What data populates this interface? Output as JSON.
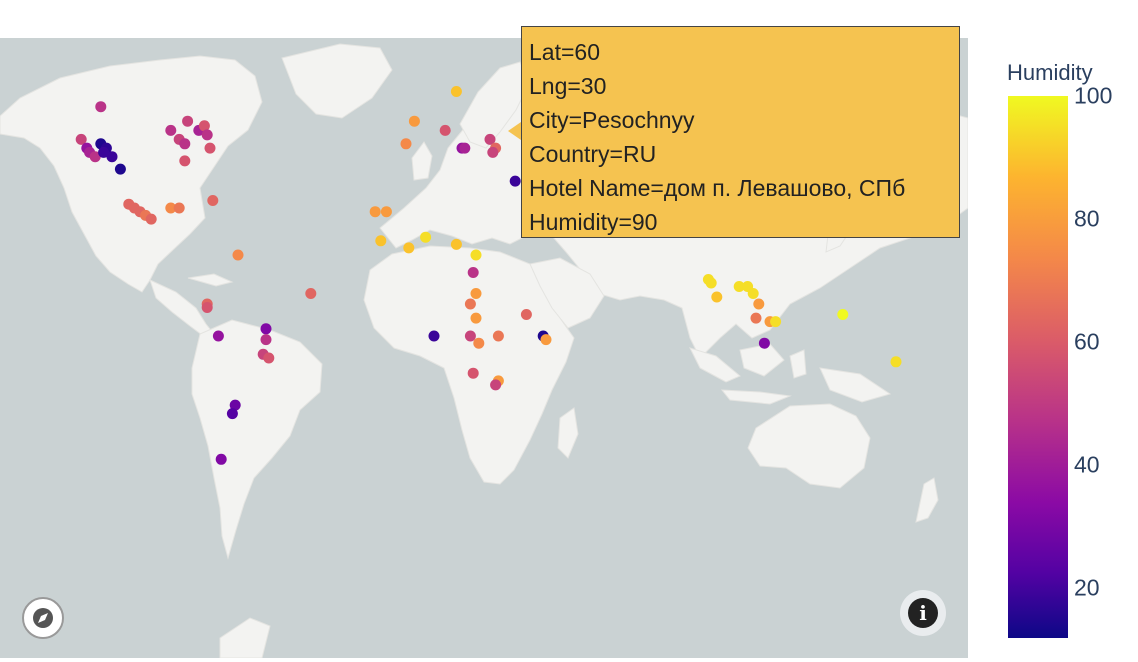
{
  "colorbar": {
    "title": "Humidity",
    "min": 12,
    "max": 100,
    "ticks": [
      {
        "label": "100",
        "value": 100
      },
      {
        "label": "80",
        "value": 80
      },
      {
        "label": "60",
        "value": 60
      },
      {
        "label": "40",
        "value": 40
      },
      {
        "label": "20",
        "value": 20
      }
    ],
    "colorscale": [
      "#0d0887",
      "#5302a3",
      "#8b0aa5",
      "#b83289",
      "#db5c68",
      "#f48849",
      "#fdb42f",
      "#f0f921"
    ]
  },
  "tooltip": {
    "lines": [
      "Lat=60",
      "Lng=30",
      "City=Pesochnyy",
      "Country=RU",
      "Hotel Name=дом п. Левашово, СПб",
      "Humidity=90"
    ]
  },
  "icons": {
    "compass": "compass-icon",
    "info": "info-icon"
  },
  "map": {
    "land_color": "#f3f3f1",
    "water_color": "#cad2d3",
    "points": [
      {
        "lat": 60,
        "lng": 30,
        "humidity": 90
      },
      {
        "lat": 45,
        "lng": -115,
        "humidity": 50
      },
      {
        "lat": 38,
        "lng": -122,
        "humidity": 55
      },
      {
        "lat": 36,
        "lng": -120,
        "humidity": 40
      },
      {
        "lat": 35,
        "lng": -119,
        "humidity": 45
      },
      {
        "lat": 34,
        "lng": -117,
        "humidity": 50
      },
      {
        "lat": 37,
        "lng": -115,
        "humidity": 15
      },
      {
        "lat": 36,
        "lng": -113,
        "humidity": 18
      },
      {
        "lat": 35,
        "lng": -114,
        "humidity": 20
      },
      {
        "lat": 34,
        "lng": -111,
        "humidity": 20
      },
      {
        "lat": 31,
        "lng": -108,
        "humidity": 15
      },
      {
        "lat": 40,
        "lng": -90,
        "humidity": 50
      },
      {
        "lat": 38,
        "lng": -87,
        "humidity": 55
      },
      {
        "lat": 37,
        "lng": -85,
        "humidity": 50
      },
      {
        "lat": 42,
        "lng": -84,
        "humidity": 55
      },
      {
        "lat": 40,
        "lng": -80,
        "humidity": 45
      },
      {
        "lat": 41,
        "lng": -78,
        "humidity": 60
      },
      {
        "lat": 39,
        "lng": -77,
        "humidity": 50
      },
      {
        "lat": 36,
        "lng": -76,
        "humidity": 60
      },
      {
        "lat": 33,
        "lng": -85,
        "humidity": 60
      },
      {
        "lat": 22,
        "lng": -105,
        "humidity": 65
      },
      {
        "lat": 21,
        "lng": -103,
        "humidity": 65
      },
      {
        "lat": 20,
        "lng": -101,
        "humidity": 65
      },
      {
        "lat": 19,
        "lng": -99,
        "humidity": 70
      },
      {
        "lat": 18,
        "lng": -97,
        "humidity": 65
      },
      {
        "lat": 21,
        "lng": -90,
        "humidity": 75
      },
      {
        "lat": 21,
        "lng": -87,
        "humidity": 70
      },
      {
        "lat": 23,
        "lng": -75,
        "humidity": 65
      },
      {
        "lat": 8,
        "lng": -66,
        "humidity": 75
      },
      {
        "lat": -3,
        "lng": -40,
        "humidity": 65
      },
      {
        "lat": -6,
        "lng": -77,
        "humidity": 65
      },
      {
        "lat": -7,
        "lng": -77,
        "humidity": 60
      },
      {
        "lat": -15,
        "lng": -73,
        "humidity": 40
      },
      {
        "lat": -13,
        "lng": -56,
        "humidity": 35
      },
      {
        "lat": -16,
        "lng": -56,
        "humidity": 50
      },
      {
        "lat": -20,
        "lng": -57,
        "humidity": 55
      },
      {
        "lat": -21,
        "lng": -55,
        "humidity": 60
      },
      {
        "lat": -33,
        "lng": -67,
        "humidity": 30
      },
      {
        "lat": -35,
        "lng": -68,
        "humidity": 25
      },
      {
        "lat": -45,
        "lng": -72,
        "humidity": 35
      },
      {
        "lat": 48,
        "lng": 12,
        "humidity": 90
      },
      {
        "lat": 42,
        "lng": -3,
        "humidity": 80
      },
      {
        "lat": 37,
        "lng": -6,
        "humidity": 75
      },
      {
        "lat": 40,
        "lng": 8,
        "humidity": 60
      },
      {
        "lat": 36,
        "lng": 14,
        "humidity": 40
      },
      {
        "lat": 36,
        "lng": 15,
        "humidity": 45
      },
      {
        "lat": 38,
        "lng": 24,
        "humidity": 55
      },
      {
        "lat": 36,
        "lng": 26,
        "humidity": 65
      },
      {
        "lat": 35,
        "lng": 25,
        "humidity": 55
      },
      {
        "lat": 28,
        "lng": 33,
        "humidity": 20
      },
      {
        "lat": 20,
        "lng": -17,
        "humidity": 80
      },
      {
        "lat": 20,
        "lng": -13,
        "humidity": 80
      },
      {
        "lat": 12,
        "lng": -15,
        "humidity": 90
      },
      {
        "lat": 10,
        "lng": -5,
        "humidity": 90
      },
      {
        "lat": 13,
        "lng": 1,
        "humidity": 95
      },
      {
        "lat": 11,
        "lng": 12,
        "humidity": 90
      },
      {
        "lat": 8,
        "lng": 19,
        "humidity": 95
      },
      {
        "lat": 3,
        "lng": 18,
        "humidity": 50
      },
      {
        "lat": -3,
        "lng": 19,
        "humidity": 80
      },
      {
        "lat": -6,
        "lng": 17,
        "humidity": 70
      },
      {
        "lat": -10,
        "lng": 19,
        "humidity": 80
      },
      {
        "lat": -15,
        "lng": 4,
        "humidity": 20
      },
      {
        "lat": -15,
        "lng": 17,
        "humidity": 55
      },
      {
        "lat": -17,
        "lng": 20,
        "humidity": 75
      },
      {
        "lat": -15,
        "lng": 27,
        "humidity": 70
      },
      {
        "lat": -25,
        "lng": 18,
        "humidity": 60
      },
      {
        "lat": -27,
        "lng": 27,
        "humidity": 80
      },
      {
        "lat": -28,
        "lng": 26,
        "humidity": 55
      },
      {
        "lat": -9,
        "lng": 37,
        "humidity": 65
      },
      {
        "lat": -15,
        "lng": 43,
        "humidity": 15
      },
      {
        "lat": -16,
        "lng": 44,
        "humidity": 80
      },
      {
        "lat": 19,
        "lng": 72,
        "humidity": 85
      },
      {
        "lat": 20,
        "lng": 75,
        "humidity": 80
      },
      {
        "lat": 22,
        "lng": 79,
        "humidity": 95
      },
      {
        "lat": 23,
        "lng": 85,
        "humidity": 80
      },
      {
        "lat": 16,
        "lng": 90,
        "humidity": 95
      },
      {
        "lat": 1,
        "lng": 102,
        "humidity": 95
      },
      {
        "lat": 0,
        "lng": 103,
        "humidity": 95
      },
      {
        "lat": -4,
        "lng": 105,
        "humidity": 90
      },
      {
        "lat": -1,
        "lng": 113,
        "humidity": 95
      },
      {
        "lat": -1,
        "lng": 116,
        "humidity": 95
      },
      {
        "lat": -3,
        "lng": 118,
        "humidity": 95
      },
      {
        "lat": -6,
        "lng": 120,
        "humidity": 80
      },
      {
        "lat": -10,
        "lng": 119,
        "humidity": 70
      },
      {
        "lat": -11,
        "lng": 124,
        "humidity": 80
      },
      {
        "lat": -11,
        "lng": 126,
        "humidity": 95
      },
      {
        "lat": -9,
        "lng": 150,
        "humidity": 100
      },
      {
        "lat": -17,
        "lng": 122,
        "humidity": 35
      },
      {
        "lat": -22,
        "lng": 169,
        "humidity": 95
      }
    ]
  }
}
